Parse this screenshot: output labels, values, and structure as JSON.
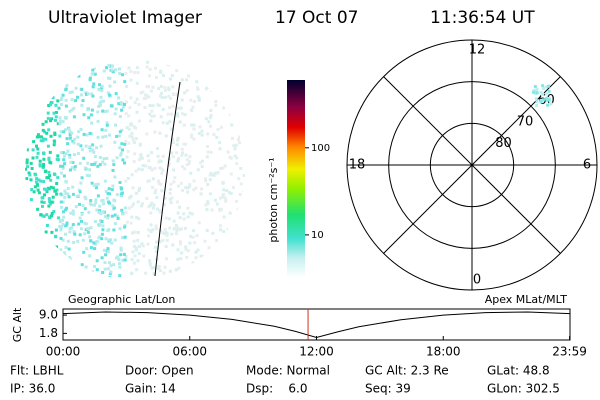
{
  "header": {
    "title": "Ultraviolet Imager",
    "date": "17 Oct 07",
    "time": "11:36:54 UT"
  },
  "colorbar": {
    "label": "photon cm⁻²s⁻¹",
    "scale": "log",
    "lim": [
      3.2,
      600
    ],
    "ticks": [
      10,
      100
    ]
  },
  "polar": {
    "hours": [
      12,
      18,
      6,
      0
    ],
    "rings": [
      80,
      70,
      60
    ],
    "lim": [
      90,
      60
    ]
  },
  "timeline": {
    "ylabel": "GC Alt",
    "left_label": "Geographic Lat/Lon",
    "right_label": "Apex MLat/MLT",
    "xlim": [
      0,
      24
    ],
    "ylim": [
      -0.8,
      11.4
    ],
    "xticks": [
      {
        "value": 0,
        "label": "00:00"
      },
      {
        "value": 6,
        "label": "06:00"
      },
      {
        "value": 12,
        "label": "12:00"
      },
      {
        "value": 18,
        "label": "18:00"
      },
      {
        "value": 23.98,
        "label": "23:59"
      }
    ],
    "yticks": [
      1.8,
      {
        "value": 9.0,
        "label": "9.0"
      }
    ],
    "x": [
      0,
      2,
      4,
      6,
      8,
      10,
      11,
      12,
      13,
      14,
      16,
      18,
      20,
      22,
      24
    ],
    "values": [
      9.6,
      10.2,
      10.0,
      9.0,
      7.3,
      4.6,
      2.6,
      0.2,
      2.4,
      4.4,
      7.2,
      9.0,
      10.0,
      10.2,
      9.6
    ],
    "marker_x": 11.6
  },
  "info": [
    [
      "Flt: LBHL",
      "Door: Open",
      "Mode: Normal",
      "GC Alt: 2.3 Re",
      "GLat: 48.8"
    ],
    [
      "IP: 36.0",
      "Gain: 14",
      "Dsp:    6.0",
      "Seq: 39",
      "GLon: 302.5"
    ]
  ]
}
